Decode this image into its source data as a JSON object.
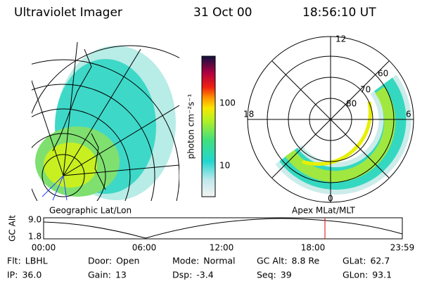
{
  "header": {
    "title": "Ultraviolet Imager",
    "date": "31 Oct 00",
    "time": "18:56:10 UT"
  },
  "colorbar": {
    "label": "photon cm⁻²s⁻¹",
    "ticks": [
      "100",
      "10"
    ]
  },
  "left_panel": {
    "caption": "Geographic Lat/Lon"
  },
  "right_panel": {
    "caption": "Apex MLat/MLT",
    "mlt_labels": [
      "12",
      "18",
      "6",
      "0"
    ],
    "lat_labels": [
      "60",
      "70",
      "80"
    ]
  },
  "altitude_plot": {
    "y_label": "GC Alt",
    "y_ticks": [
      "9.0",
      "1.8"
    ],
    "x_ticks": [
      "00:00",
      "06:00",
      "12:00",
      "18:00",
      "23:59"
    ]
  },
  "info": [
    [
      {
        "label": "Flt:",
        "value": "LBHL"
      },
      {
        "label": "Door:",
        "value": "Open"
      },
      {
        "label": "Mode:",
        "value": "Normal"
      },
      {
        "label": "GC Alt:",
        "value": "8.8 Re"
      },
      {
        "label": "GLat:",
        "value": "62.7"
      }
    ],
    [
      {
        "label": "IP:",
        "value": "36.0"
      },
      {
        "label": "Gain:",
        "value": "13"
      },
      {
        "label": "Dsp:",
        "value": "-3.4"
      },
      {
        "label": "Seq:",
        "value": "39"
      },
      {
        "label": "GLon:",
        "value": "93.1"
      }
    ]
  ]
}
